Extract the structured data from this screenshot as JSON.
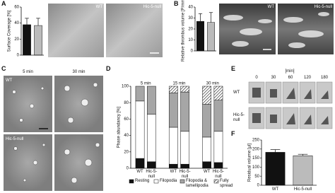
{
  "chart_data": [
    {
      "type": "bar",
      "ylabel": "Surface Coverage [%]",
      "categories": [
        null,
        null
      ],
      "values": [
        38,
        37
      ],
      "errors": [
        8,
        9
      ],
      "colors": [
        "#111111",
        "#bbbbbb"
      ],
      "ylim": [
        0,
        60
      ],
      "yticks": [
        0,
        20,
        40,
        60
      ]
    },
    {
      "type": "bar",
      "ylabel": "Relative thrombus volume [P/mm²]",
      "categories": [
        null,
        null
      ],
      "values": [
        27,
        26
      ],
      "errors": [
        7,
        9
      ],
      "colors": [
        "#111111",
        "#bbbbbb"
      ],
      "ylim": [
        0,
        40
      ],
      "yticks": [
        0,
        10,
        20,
        30,
        40
      ]
    },
    {
      "type": "stacked_bar",
      "ylabel": "Phase abundancy [%]",
      "groups": [
        "5 min",
        "15 min",
        "30 min"
      ],
      "categories": [
        "WT",
        "Hic-5-null",
        "WT",
        "Hic-5-null",
        "WT",
        "Hic-5-null"
      ],
      "series": [
        {
          "name": "Resting",
          "color": "#111111",
          "values": [
            12,
            8,
            5,
            5,
            8,
            7
          ]
        },
        {
          "name": "Filopodia",
          "color": "#ffffff",
          "values": [
            70,
            58,
            45,
            40,
            30,
            38
          ]
        },
        {
          "name": "Filopodia & lamellipodia",
          "color": "#a6a6a6",
          "values": [
            18,
            34,
            42,
            48,
            40,
            38
          ]
        },
        {
          "name": "Fully spread",
          "color": "#ffffff",
          "hatch": true,
          "values": [
            0,
            0,
            8,
            7,
            22,
            17
          ]
        }
      ],
      "ylim": [
        0,
        100
      ],
      "yticks": [
        0,
        20,
        40,
        60,
        80,
        100
      ]
    },
    {
      "type": "bar",
      "ylabel": "Residual volume [µl]",
      "categories": [
        "WT",
        "Hic-5-null"
      ],
      "values": [
        182,
        163
      ],
      "errors": [
        15,
        8
      ],
      "colors": [
        "#111111",
        "#bbbbbb"
      ],
      "ylim": [
        0,
        250
      ],
      "yticks": [
        0,
        50,
        100,
        150,
        200,
        250
      ]
    }
  ],
  "figure": {
    "letters": [
      "A",
      "B",
      "C",
      "D",
      "E",
      "F"
    ],
    "a_labels": [
      "WT",
      "Hic-5-null"
    ],
    "b_labels": [
      "WT",
      "Hic-5-null"
    ],
    "c_cols": [
      "5 min",
      "30 min"
    ],
    "c_rows": [
      "WT",
      "Hic-5-null"
    ],
    "e_unit": "[min]",
    "e_cols": [
      "0",
      "30",
      "60",
      "120",
      "180"
    ],
    "e_rows": [
      "WT",
      "Hic-5-null"
    ]
  }
}
